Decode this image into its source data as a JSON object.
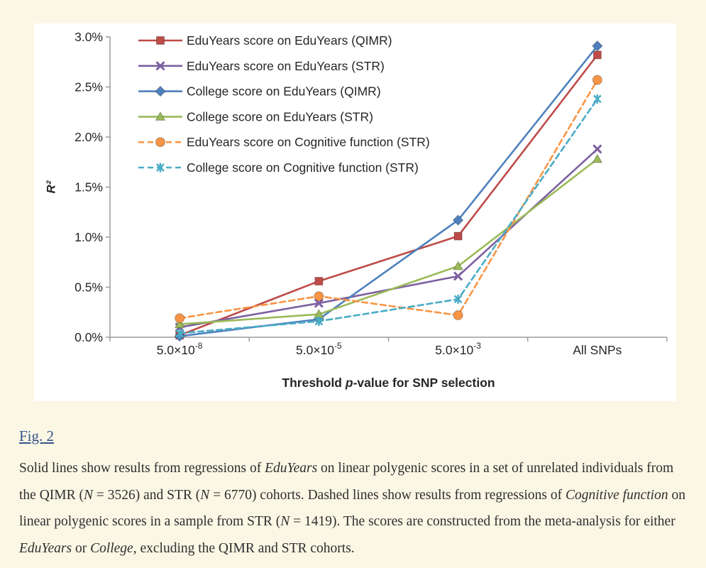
{
  "page": {
    "background": "#fbf7e5",
    "panel_background": "#ffffff"
  },
  "figure_link": {
    "label": "Fig. 2",
    "color": "#35548b"
  },
  "caption": {
    "segments": [
      {
        "text": "Solid lines show results from regressions of ",
        "italic": false
      },
      {
        "text": "EduYears",
        "italic": true
      },
      {
        "text": " on linear polygenic scores in a set of unrelated individuals from the QIMR (",
        "italic": false
      },
      {
        "text": "N",
        "italic": true
      },
      {
        "text": " = 3526) and STR (",
        "italic": false
      },
      {
        "text": "N",
        "italic": true
      },
      {
        "text": " = 6770) cohorts. Dashed lines show results from regressions of ",
        "italic": false
      },
      {
        "text": "Cognitive function",
        "italic": true
      },
      {
        "text": " on linear polygenic scores in a sample from STR (",
        "italic": false
      },
      {
        "text": "N",
        "italic": true
      },
      {
        "text": " = 1419). The scores are constructed from the meta-analysis for either ",
        "italic": false
      },
      {
        "text": "EduYears",
        "italic": true
      },
      {
        "text": " or ",
        "italic": false
      },
      {
        "text": "College",
        "italic": true
      },
      {
        "text": ", excluding the QIMR and STR cohorts.",
        "italic": false
      }
    ]
  },
  "chart_data": {
    "type": "line",
    "title": "",
    "ylabel": "R²",
    "xlabel": {
      "pre": "Threshold ",
      "italic": "p",
      "post": "-value for SNP selection"
    },
    "ylim": [
      0,
      3
    ],
    "grid": false,
    "legend_position": "top-left-inside",
    "yticks": [
      {
        "value": 0.0,
        "label": "0.0%"
      },
      {
        "value": 0.5,
        "label": "0.5%"
      },
      {
        "value": 1.0,
        "label": "1.0%"
      },
      {
        "value": 1.5,
        "label": "1.5%"
      },
      {
        "value": 2.0,
        "label": "2.0%"
      },
      {
        "value": 2.5,
        "label": "2.5%"
      },
      {
        "value": 3.0,
        "label": "3.0%"
      }
    ],
    "categories": [
      {
        "base": "5.0×10",
        "sup": "-8"
      },
      {
        "base": "5.0×10",
        "sup": "-5"
      },
      {
        "base": "5.0×10",
        "sup": "-3"
      },
      {
        "base": "All SNPs",
        "sup": ""
      }
    ],
    "series": [
      {
        "name": "EduYears score on EduYears (QIMR)",
        "color": "#be4b48",
        "dash": false,
        "marker": "square",
        "values": [
          0.02,
          0.56,
          1.01,
          2.82
        ]
      },
      {
        "name": "EduYears score on EduYears (STR)",
        "color": "#7d60a0",
        "dash": false,
        "marker": "x",
        "values": [
          0.1,
          0.34,
          0.61,
          1.88
        ]
      },
      {
        "name": "College score on EduYears (QIMR)",
        "color": "#4e81bd",
        "dash": false,
        "marker": "diamond",
        "values": [
          0.01,
          0.18,
          1.17,
          2.91
        ]
      },
      {
        "name": "College score on EduYears (STR)",
        "color": "#9aba58",
        "dash": false,
        "marker": "triangle",
        "values": [
          0.13,
          0.23,
          0.71,
          1.78
        ]
      },
      {
        "name": "EduYears score on Cognitive function (STR)",
        "color": "#f79545",
        "dash": true,
        "marker": "circle",
        "values": [
          0.19,
          0.41,
          0.22,
          2.57
        ]
      },
      {
        "name": "College score on Cognitive function (STR)",
        "color": "#4aacc5",
        "dash": true,
        "marker": "asterisk",
        "values": [
          0.04,
          0.16,
          0.38,
          2.38
        ]
      }
    ],
    "axis_color": "#9b9b9b"
  }
}
